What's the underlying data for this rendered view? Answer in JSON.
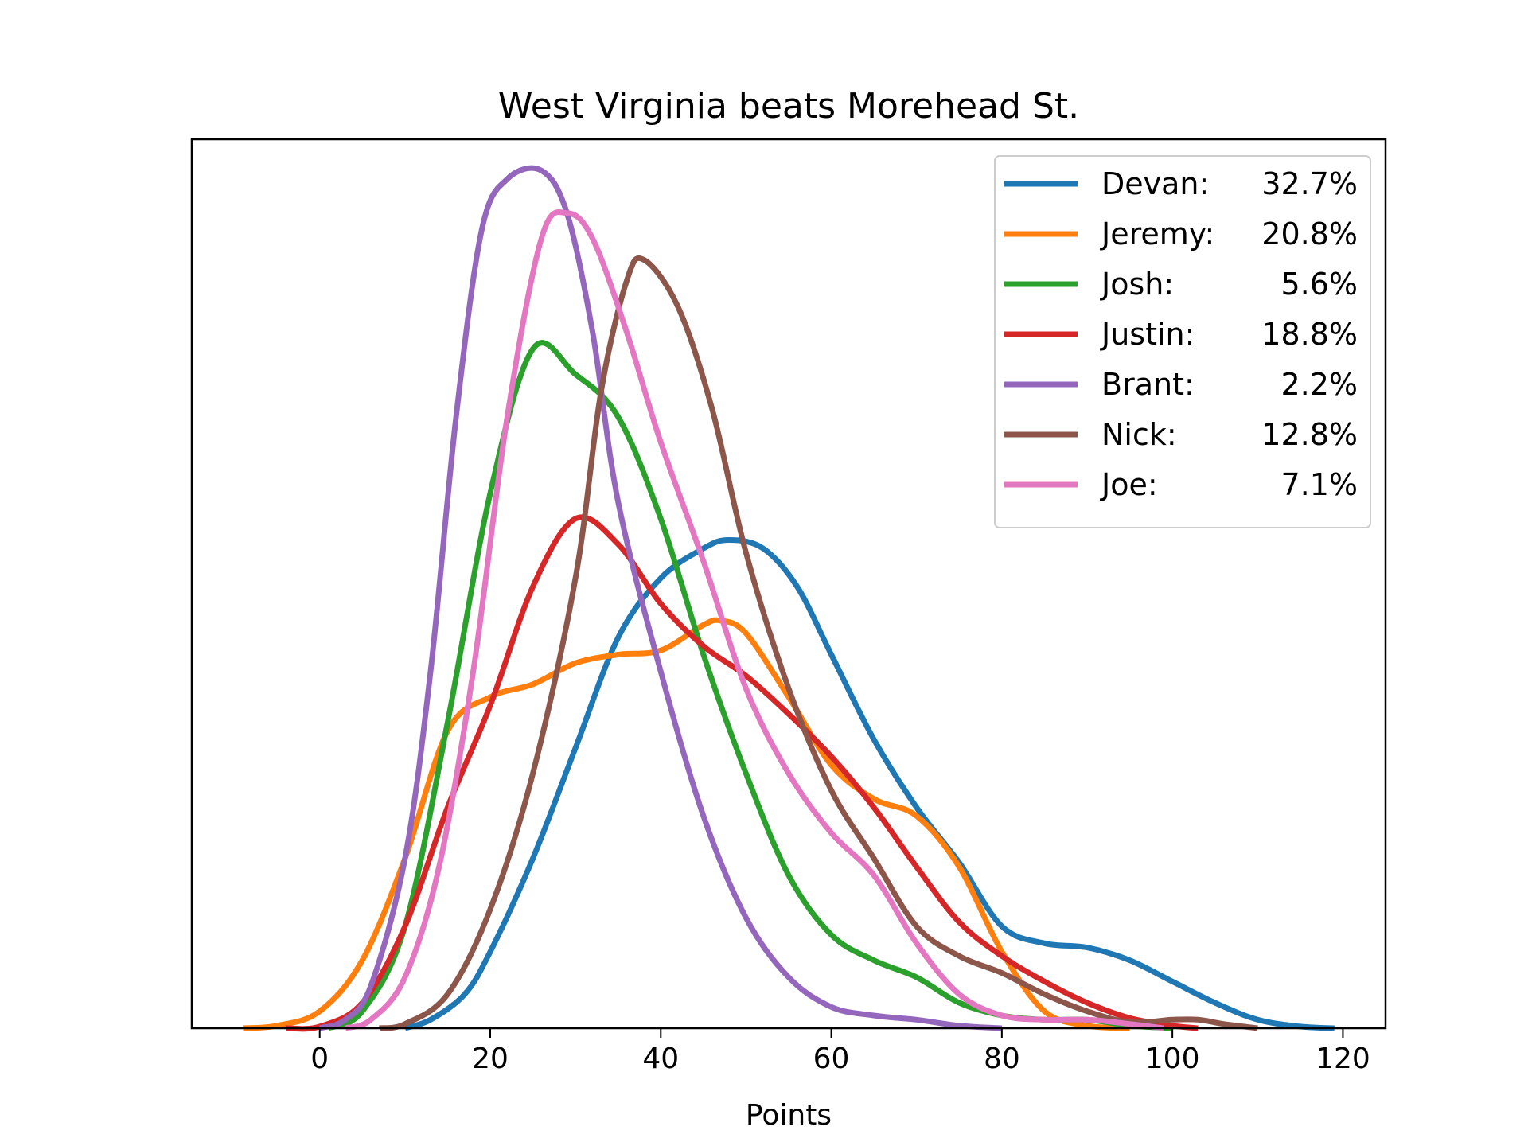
{
  "chart_data": {
    "type": "line",
    "title": "West Virginia beats Morehead St.",
    "xlabel": "Points",
    "ylabel": "",
    "xlim": [
      -15,
      125
    ],
    "ylim": [
      0,
      1.0
    ],
    "xticks": [
      0,
      20,
      40,
      60,
      80,
      100,
      120
    ],
    "yticks": [],
    "grid": false,
    "legend_position": "top-right",
    "series": [
      {
        "name": "Devan:",
        "pct": "32.7%",
        "color": "#1f77b4",
        "points": [
          [
            10,
            0
          ],
          [
            13,
            0.01
          ],
          [
            17,
            0.04
          ],
          [
            20,
            0.09
          ],
          [
            25,
            0.2
          ],
          [
            30,
            0.33
          ],
          [
            35,
            0.46
          ],
          [
            40,
            0.53
          ],
          [
            45,
            0.565
          ],
          [
            48,
            0.575
          ],
          [
            52,
            0.565
          ],
          [
            56,
            0.52
          ],
          [
            60,
            0.44
          ],
          [
            65,
            0.34
          ],
          [
            70,
            0.26
          ],
          [
            75,
            0.195
          ],
          [
            80,
            0.12
          ],
          [
            85,
            0.1
          ],
          [
            90,
            0.095
          ],
          [
            95,
            0.08
          ],
          [
            100,
            0.055
          ],
          [
            105,
            0.03
          ],
          [
            110,
            0.01
          ],
          [
            115,
            0.002
          ],
          [
            119,
            0
          ]
        ]
      },
      {
        "name": "Jeremy:",
        "pct": "20.8%",
        "color": "#ff7f0e",
        "points": [
          [
            -9,
            0
          ],
          [
            -5,
            0.003
          ],
          [
            0,
            0.02
          ],
          [
            5,
            0.08
          ],
          [
            10,
            0.2
          ],
          [
            15,
            0.35
          ],
          [
            20,
            0.39
          ],
          [
            25,
            0.405
          ],
          [
            30,
            0.43
          ],
          [
            35,
            0.44
          ],
          [
            40,
            0.445
          ],
          [
            45,
            0.475
          ],
          [
            47,
            0.48
          ],
          [
            50,
            0.465
          ],
          [
            55,
            0.39
          ],
          [
            60,
            0.31
          ],
          [
            65,
            0.27
          ],
          [
            70,
            0.25
          ],
          [
            75,
            0.19
          ],
          [
            80,
            0.09
          ],
          [
            85,
            0.02
          ],
          [
            90,
            0.003
          ],
          [
            95,
            0
          ]
        ]
      },
      {
        "name": "Josh:",
        "pct": "5.6%",
        "color": "#2ca02c",
        "points": [
          [
            1,
            0
          ],
          [
            5,
            0.02
          ],
          [
            10,
            0.12
          ],
          [
            15,
            0.36
          ],
          [
            20,
            0.63
          ],
          [
            25,
            0.8
          ],
          [
            30,
            0.77
          ],
          [
            35,
            0.72
          ],
          [
            40,
            0.6
          ],
          [
            45,
            0.44
          ],
          [
            50,
            0.3
          ],
          [
            55,
            0.18
          ],
          [
            60,
            0.11
          ],
          [
            65,
            0.08
          ],
          [
            70,
            0.06
          ],
          [
            75,
            0.03
          ],
          [
            80,
            0.015
          ],
          [
            85,
            0.01
          ],
          [
            90,
            0.01
          ],
          [
            95,
            0.003
          ],
          [
            100,
            0
          ]
        ]
      },
      {
        "name": "Justin:",
        "pct": "18.8%",
        "color": "#d62728",
        "points": [
          [
            -4,
            0
          ],
          [
            0,
            0.002
          ],
          [
            5,
            0.03
          ],
          [
            10,
            0.12
          ],
          [
            15,
            0.26
          ],
          [
            20,
            0.38
          ],
          [
            25,
            0.52
          ],
          [
            30,
            0.6
          ],
          [
            35,
            0.57
          ],
          [
            40,
            0.5
          ],
          [
            45,
            0.45
          ],
          [
            50,
            0.415
          ],
          [
            55,
            0.37
          ],
          [
            60,
            0.32
          ],
          [
            65,
            0.26
          ],
          [
            70,
            0.19
          ],
          [
            75,
            0.125
          ],
          [
            80,
            0.085
          ],
          [
            85,
            0.055
          ],
          [
            90,
            0.03
          ],
          [
            95,
            0.012
          ],
          [
            100,
            0.003
          ],
          [
            103,
            0
          ]
        ]
      },
      {
        "name": "Brant:",
        "pct": "2.2%",
        "color": "#9467bd",
        "points": [
          [
            0,
            0
          ],
          [
            3,
            0.01
          ],
          [
            6,
            0.05
          ],
          [
            10,
            0.2
          ],
          [
            13,
            0.42
          ],
          [
            16,
            0.72
          ],
          [
            19,
            0.94
          ],
          [
            22,
            1.0
          ],
          [
            26,
            1.01
          ],
          [
            29,
            0.96
          ],
          [
            32,
            0.82
          ],
          [
            35,
            0.62
          ],
          [
            40,
            0.42
          ],
          [
            45,
            0.25
          ],
          [
            50,
            0.13
          ],
          [
            55,
            0.06
          ],
          [
            60,
            0.025
          ],
          [
            65,
            0.015
          ],
          [
            70,
            0.01
          ],
          [
            75,
            0.003
          ],
          [
            80,
            0
          ]
        ]
      },
      {
        "name": "Nick:",
        "pct": "12.8%",
        "color": "#8c564b",
        "points": [
          [
            7,
            0
          ],
          [
            10,
            0.005
          ],
          [
            15,
            0.04
          ],
          [
            20,
            0.14
          ],
          [
            25,
            0.3
          ],
          [
            30,
            0.53
          ],
          [
            33,
            0.75
          ],
          [
            36,
            0.88
          ],
          [
            38,
            0.905
          ],
          [
            42,
            0.85
          ],
          [
            46,
            0.73
          ],
          [
            50,
            0.56
          ],
          [
            55,
            0.4
          ],
          [
            60,
            0.28
          ],
          [
            65,
            0.2
          ],
          [
            70,
            0.12
          ],
          [
            75,
            0.085
          ],
          [
            80,
            0.065
          ],
          [
            85,
            0.04
          ],
          [
            90,
            0.02
          ],
          [
            95,
            0.007
          ],
          [
            100,
            0.01
          ],
          [
            103,
            0.01
          ],
          [
            106,
            0.005
          ],
          [
            110,
            0
          ]
        ]
      },
      {
        "name": "Joe:",
        "pct": "7.1%",
        "color": "#e377c2",
        "points": [
          [
            3,
            0
          ],
          [
            6,
            0.01
          ],
          [
            10,
            0.06
          ],
          [
            14,
            0.19
          ],
          [
            18,
            0.42
          ],
          [
            22,
            0.72
          ],
          [
            26,
            0.93
          ],
          [
            29,
            0.96
          ],
          [
            32,
            0.93
          ],
          [
            36,
            0.82
          ],
          [
            40,
            0.69
          ],
          [
            45,
            0.55
          ],
          [
            50,
            0.4
          ],
          [
            55,
            0.3
          ],
          [
            60,
            0.23
          ],
          [
            65,
            0.18
          ],
          [
            70,
            0.1
          ],
          [
            75,
            0.04
          ],
          [
            80,
            0.015
          ],
          [
            85,
            0.01
          ],
          [
            90,
            0.01
          ],
          [
            95,
            0.005
          ],
          [
            99,
            0
          ]
        ]
      }
    ]
  }
}
